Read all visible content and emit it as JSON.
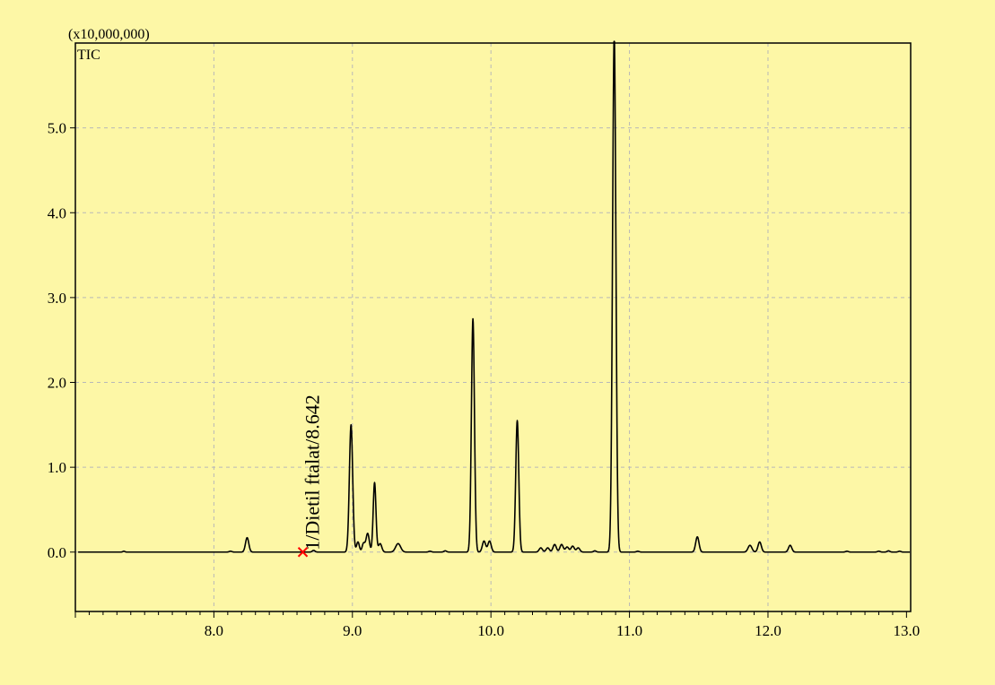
{
  "colors": {
    "background": "#fdf7a6",
    "plot_border": "#000000",
    "grid": "#b8b8b8",
    "trace": "#000000",
    "marker": "#ff0000",
    "text": "#000000"
  },
  "chart_data": {
    "type": "line",
    "title": "",
    "scale_label": "(x10,000,000)",
    "trace_label": "TIC",
    "xlabel": "",
    "ylabel": "",
    "xlim": [
      7.0,
      13.03
    ],
    "ylim": [
      -0.7,
      6.0
    ],
    "x_ticks": [
      8.0,
      9.0,
      10.0,
      11.0,
      12.0,
      13.0
    ],
    "x_tick_labels": [
      "8.0",
      "9.0",
      "10.0",
      "11.0",
      "12.0",
      "13.0"
    ],
    "y_ticks": [
      0.0,
      1.0,
      2.0,
      3.0,
      4.0,
      5.0
    ],
    "y_tick_labels": [
      "0.0",
      "1.0",
      "2.0",
      "3.0",
      "4.0",
      "5.0"
    ],
    "grid": true,
    "baseline": 0.0,
    "series": [
      {
        "peaks": [
          [
            7.35,
            0.01,
            0.008
          ],
          [
            8.12,
            0.01,
            0.01
          ],
          [
            8.24,
            0.17,
            0.012
          ],
          [
            8.72,
            0.02,
            0.01
          ],
          [
            8.99,
            1.5,
            0.012
          ],
          [
            9.04,
            0.12,
            0.01
          ],
          [
            9.08,
            0.1,
            0.01
          ],
          [
            9.11,
            0.22,
            0.012
          ],
          [
            9.16,
            0.82,
            0.01
          ],
          [
            9.2,
            0.1,
            0.012
          ],
          [
            9.33,
            0.1,
            0.018
          ],
          [
            9.56,
            0.01,
            0.01
          ],
          [
            9.67,
            0.015,
            0.01
          ],
          [
            9.87,
            2.75,
            0.011
          ],
          [
            9.95,
            0.13,
            0.012
          ],
          [
            9.99,
            0.13,
            0.012
          ],
          [
            10.19,
            1.55,
            0.011
          ],
          [
            10.36,
            0.05,
            0.012
          ],
          [
            10.41,
            0.05,
            0.012
          ],
          [
            10.46,
            0.09,
            0.012
          ],
          [
            10.51,
            0.09,
            0.012
          ],
          [
            10.55,
            0.06,
            0.012
          ],
          [
            10.59,
            0.07,
            0.012
          ],
          [
            10.63,
            0.05,
            0.012
          ],
          [
            10.75,
            0.015,
            0.01
          ],
          [
            10.89,
            6.1,
            0.012
          ],
          [
            11.06,
            0.01,
            0.01
          ],
          [
            11.49,
            0.18,
            0.012
          ],
          [
            11.87,
            0.08,
            0.014
          ],
          [
            11.94,
            0.12,
            0.012
          ],
          [
            12.16,
            0.08,
            0.012
          ],
          [
            12.57,
            0.01,
            0.01
          ],
          [
            12.8,
            0.01,
            0.01
          ],
          [
            12.87,
            0.015,
            0.01
          ],
          [
            12.95,
            0.01,
            0.01
          ]
        ]
      }
    ],
    "annotations": [
      {
        "x": 8.642,
        "y": 0.0,
        "label": "1/Dietil ftalat/8.642"
      }
    ]
  }
}
